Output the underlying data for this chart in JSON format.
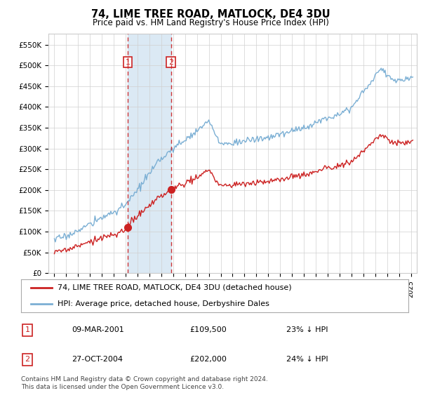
{
  "title": "74, LIME TREE ROAD, MATLOCK, DE4 3DU",
  "subtitle": "Price paid vs. HM Land Registry's House Price Index (HPI)",
  "legend_line1": "74, LIME TREE ROAD, MATLOCK, DE4 3DU (detached house)",
  "legend_line2": "HPI: Average price, detached house, Derbyshire Dales",
  "footnote": "Contains HM Land Registry data © Crown copyright and database right 2024.\nThis data is licensed under the Open Government Licence v3.0.",
  "table_rows": [
    {
      "num": "1",
      "date": "09-MAR-2001",
      "price": "£109,500",
      "hpi": "23% ↓ HPI"
    },
    {
      "num": "2",
      "date": "27-OCT-2004",
      "price": "£202,000",
      "hpi": "24% ↓ HPI"
    }
  ],
  "sale1_x": 2001.18,
  "sale1_y": 109500,
  "sale2_x": 2004.82,
  "sale2_y": 202000,
  "vline1_x": 2001.18,
  "vline2_x": 2004.82,
  "hpi_color": "#7bafd4",
  "price_color": "#cc2222",
  "vline_color": "#cc2222",
  "shade_color": "#cce0f0",
  "ylim_min": 0,
  "ylim_max": 577000,
  "xlim_min": 1994.5,
  "xlim_max": 2025.5,
  "yticks": [
    0,
    50000,
    100000,
    150000,
    200000,
    250000,
    300000,
    350000,
    400000,
    450000,
    500000,
    550000
  ],
  "ytick_labels": [
    "£0",
    "£50K",
    "£100K",
    "£150K",
    "£200K",
    "£250K",
    "£300K",
    "£350K",
    "£400K",
    "£450K",
    "£500K",
    "£550K"
  ]
}
